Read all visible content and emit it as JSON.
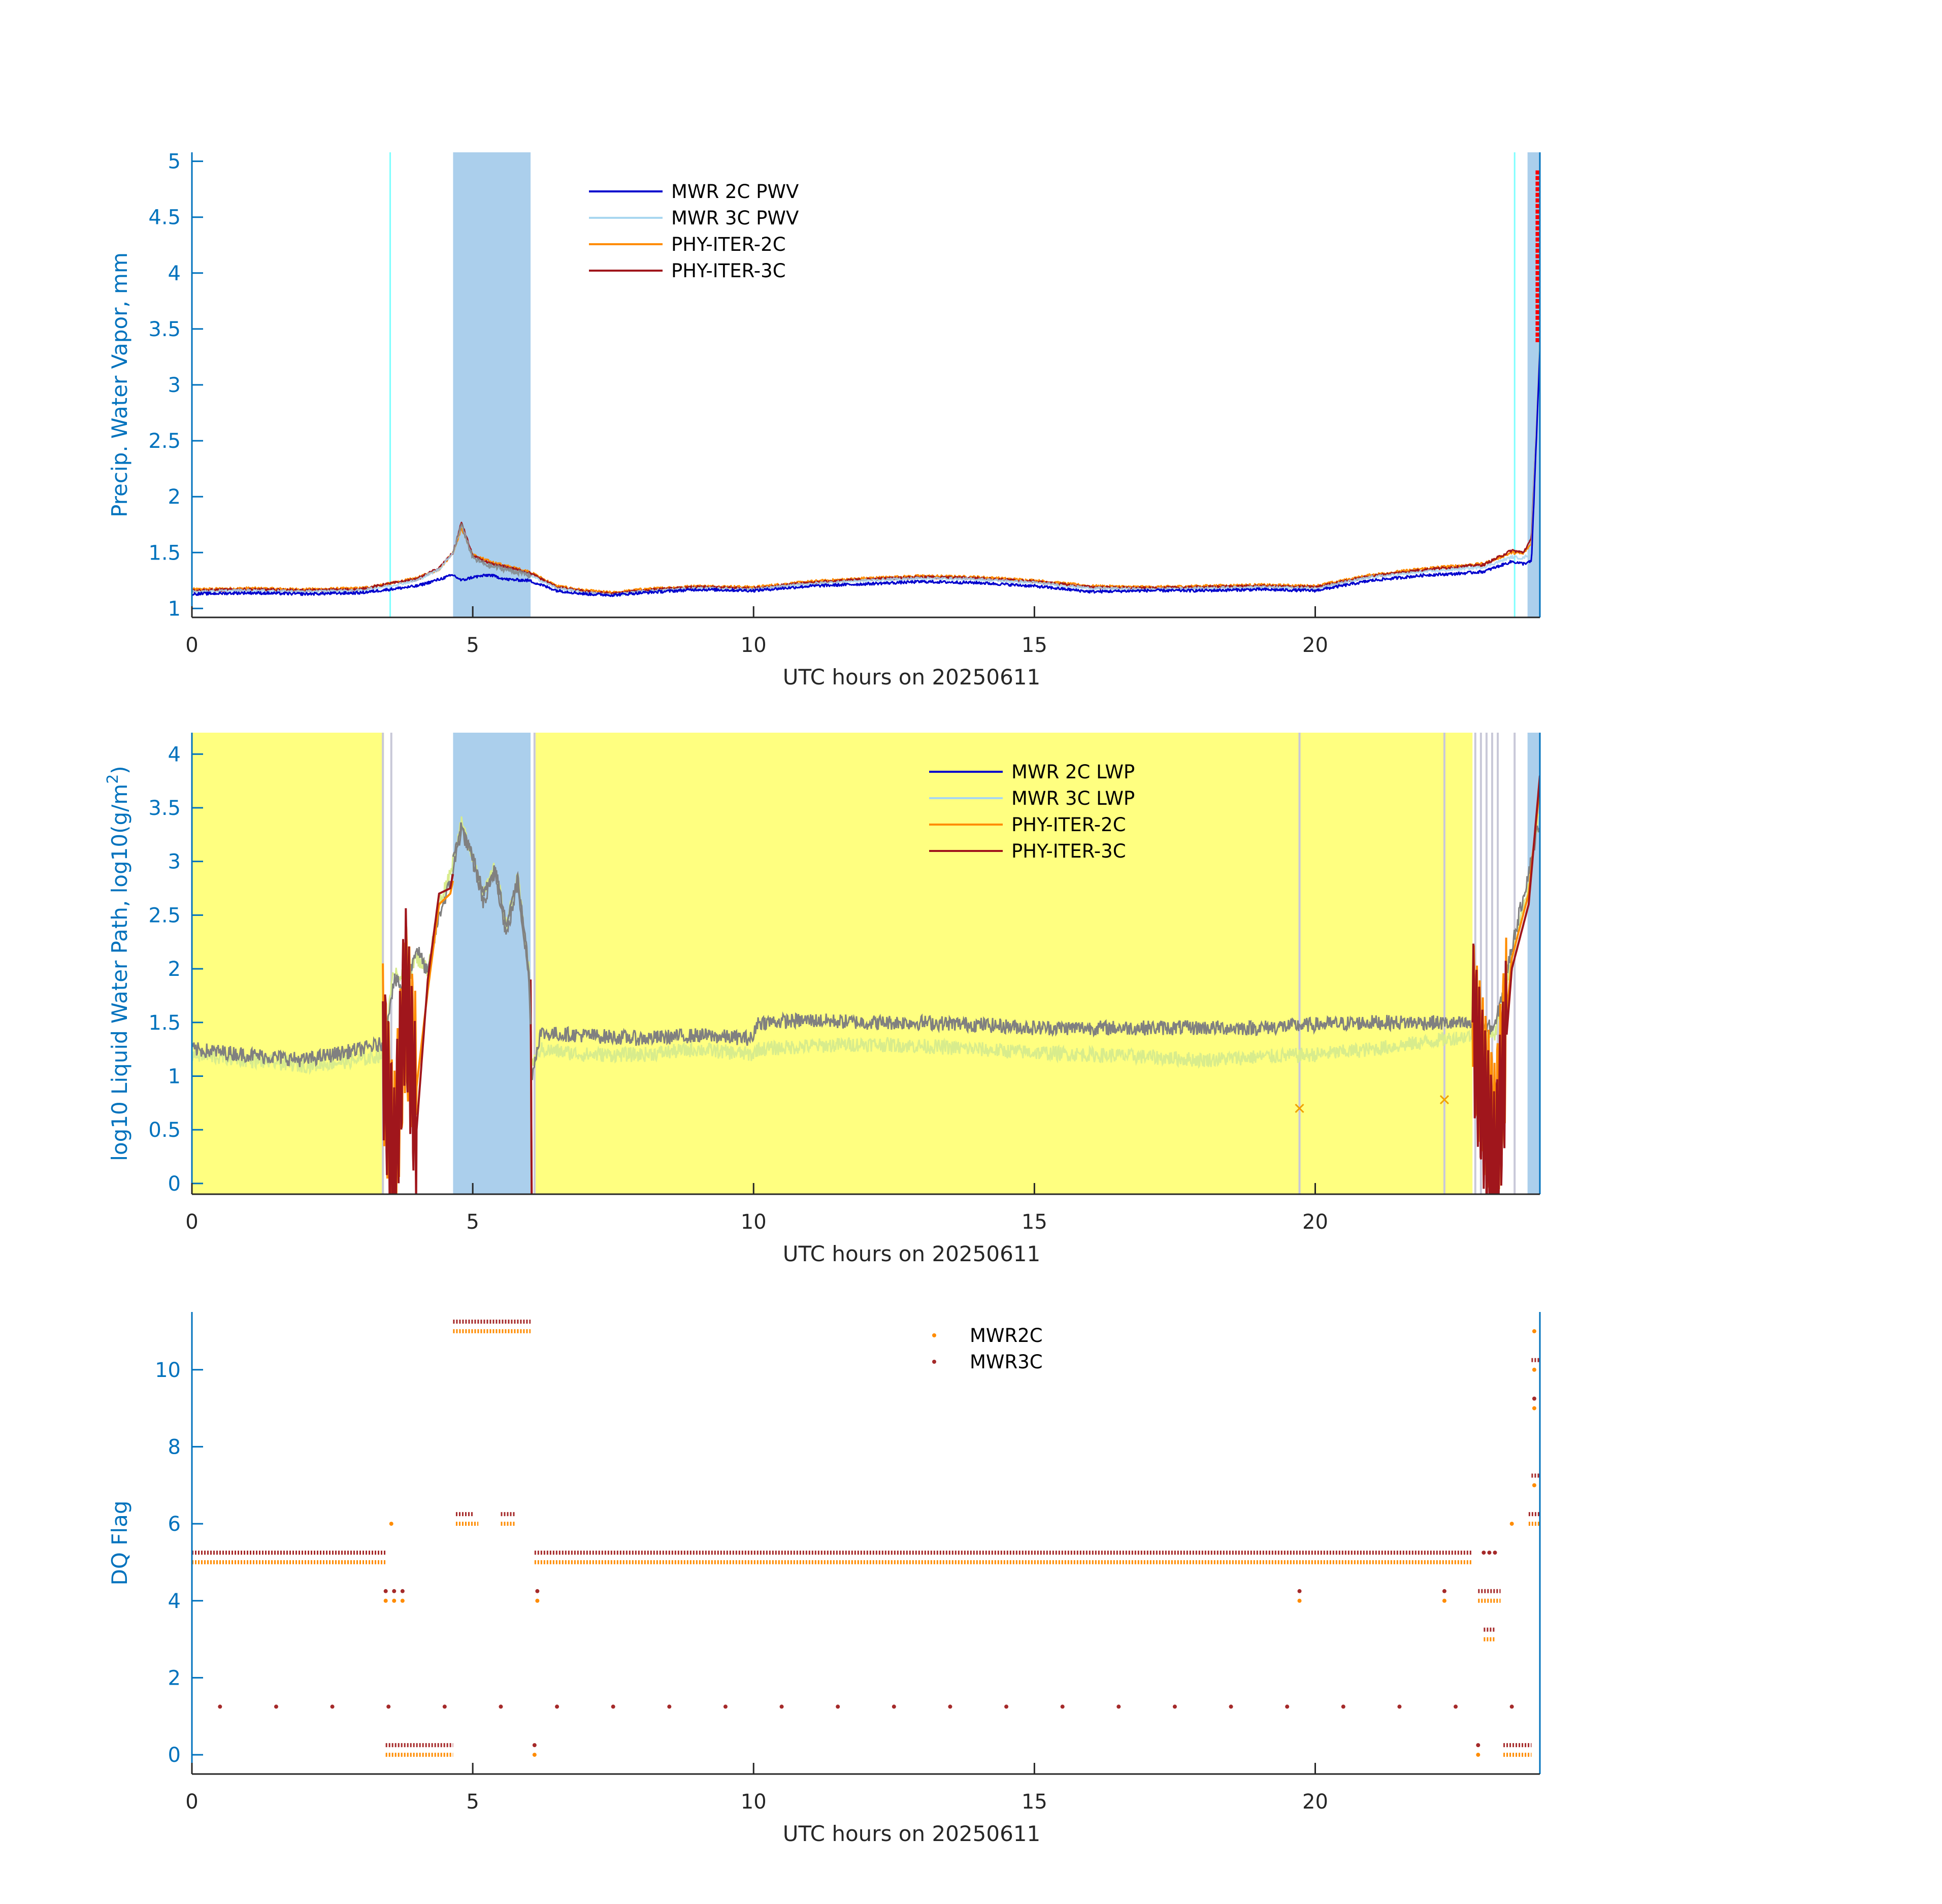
{
  "colors": {
    "axis_y": "#0072bd",
    "axis_x": "#262626",
    "mwr2c": "#0000cd",
    "mwr3c": "#a9d7f0",
    "phy2c": "#ff8c00",
    "phy3c": "#a0161c",
    "flag_2c": "#ff8c00",
    "flag_3c": "#a52a2a",
    "shade_blue": "#abcfec",
    "shade_yellow": "#ffff80",
    "cyan_line": "#7fffff",
    "grey_line": "#808080",
    "light_green": "#d8ec8c",
    "red_mark": "#ff0000"
  },
  "chart_data": [
    {
      "type": "line",
      "xlabel": "UTC hours on 20250611",
      "ylabel": "Precip. Water Vapor, mm",
      "xlim": [
        0,
        24
      ],
      "ylim": [
        0.92,
        5.08
      ],
      "xticks": [
        0,
        5,
        10,
        15,
        20
      ],
      "yticks": [
        1,
        1.5,
        2,
        2.5,
        3,
        3.5,
        4,
        4.5,
        5
      ],
      "ytick_labels": [
        "1",
        "1.5",
        "2",
        "2.5",
        "3",
        "3.5",
        "4",
        "4.5",
        "5"
      ],
      "legend_position": "top-center",
      "shaded_intervals_x": [
        [
          4.65,
          6.03
        ],
        [
          23.78,
          24.0
        ]
      ],
      "cyan_lines_x": [
        3.53,
        23.55
      ],
      "x": [
        0,
        1,
        2,
        3,
        3.5,
        4,
        4.4,
        4.65,
        4.8,
        5.0,
        5.3,
        5.6,
        6.0,
        6.5,
        7.0,
        7.5,
        8,
        9,
        10,
        11,
        12,
        13,
        14,
        15,
        16,
        17,
        18,
        19,
        20,
        21,
        22,
        22.5,
        23,
        23.5,
        23.7,
        23.85,
        24
      ],
      "series": [
        {
          "name": "MWR 2C PWV",
          "values": [
            1.13,
            1.14,
            1.13,
            1.14,
            1.17,
            1.2,
            1.26,
            1.3,
            1.25,
            1.28,
            1.3,
            1.26,
            1.25,
            1.16,
            1.13,
            1.12,
            1.14,
            1.17,
            1.16,
            1.2,
            1.22,
            1.24,
            1.23,
            1.2,
            1.15,
            1.16,
            1.16,
            1.17,
            1.16,
            1.25,
            1.3,
            1.31,
            1.33,
            1.42,
            1.4,
            1.42,
            3.3
          ]
        },
        {
          "name": "MWR 3C PWV",
          "values": [
            1.15,
            1.16,
            1.15,
            1.16,
            1.2,
            1.25,
            1.35,
            1.5,
            1.75,
            1.45,
            1.38,
            1.35,
            1.3,
            1.18,
            1.14,
            1.12,
            1.15,
            1.18,
            1.17,
            1.22,
            1.25,
            1.27,
            1.26,
            1.23,
            1.18,
            1.17,
            1.18,
            1.19,
            1.18,
            1.28,
            1.33,
            1.35,
            1.37,
            1.46,
            1.45,
            1.5,
            3.6
          ]
        },
        {
          "name": "PHY-ITER-2C",
          "values": [
            1.17,
            1.18,
            1.17,
            1.18,
            1.22,
            1.27,
            1.35,
            1.5,
            1.72,
            1.48,
            1.42,
            1.38,
            1.33,
            1.2,
            1.16,
            1.14,
            1.17,
            1.2,
            1.19,
            1.24,
            1.27,
            1.29,
            1.28,
            1.25,
            1.2,
            1.19,
            1.2,
            1.21,
            1.2,
            1.3,
            1.36,
            1.38,
            1.4,
            1.5,
            1.49,
            1.58,
            3.5
          ]
        },
        {
          "name": "PHY-ITER-3C",
          "values": [
            1.16,
            1.17,
            1.16,
            1.17,
            1.22,
            1.26,
            1.36,
            1.5,
            1.77,
            1.47,
            1.4,
            1.37,
            1.32,
            1.19,
            1.15,
            1.13,
            1.16,
            1.19,
            1.18,
            1.23,
            1.26,
            1.28,
            1.27,
            1.24,
            1.19,
            1.18,
            1.19,
            1.2,
            1.19,
            1.29,
            1.35,
            1.37,
            1.39,
            1.52,
            1.5,
            1.62,
            3.4
          ]
        }
      ],
      "red_marks_x": 23.95,
      "red_marks_y": [
        3.4,
        4.9
      ]
    },
    {
      "type": "line",
      "xlabel": "UTC hours on 20250611",
      "ylabel": "log10 Liquid Water Path, log10(g/m",
      "ylabel_sup": "2",
      "ylabel_end": ")",
      "xlim": [
        0,
        24
      ],
      "ylim": [
        -0.1,
        4.2
      ],
      "xticks": [
        0,
        5,
        10,
        15,
        20
      ],
      "yticks": [
        0,
        0.5,
        1,
        1.5,
        2,
        2.5,
        3,
        3.5,
        4
      ],
      "ytick_labels": [
        "0",
        "0.5",
        "1",
        "1.5",
        "2",
        "2.5",
        "3",
        "3.5",
        "4"
      ],
      "legend_position": "top-center",
      "yellow_intervals_x": [
        [
          0,
          3.42
        ],
        [
          6.12,
          22.8
        ]
      ],
      "shaded_intervals_x": [
        [
          4.65,
          6.03
        ],
        [
          23.78,
          24.0
        ]
      ],
      "thin_lines_x": [
        3.4,
        3.55,
        6.1,
        19.72,
        22.3,
        22.85,
        22.95,
        23.05,
        23.15,
        23.25,
        23.55
      ],
      "x": [
        0,
        1,
        2,
        3,
        3.4,
        3.6,
        3.8,
        4.0,
        4.2,
        4.4,
        4.6,
        4.8,
        5.0,
        5.2,
        5.4,
        5.6,
        5.8,
        6.0,
        6.05,
        6.2,
        7,
        8,
        9,
        10,
        10.05,
        11,
        12,
        13,
        14,
        15,
        16,
        17,
        18,
        19,
        20,
        21,
        22,
        22.8,
        23.2,
        23.5,
        23.8,
        24
      ],
      "series": [
        {
          "name": "MWR 2C LWP",
          "values": [
            1.25,
            1.2,
            1.15,
            1.25,
            1.3,
            1.9,
            1.8,
            2.2,
            1.95,
            2.5,
            2.8,
            3.3,
            3.0,
            2.6,
            2.9,
            2.3,
            2.8,
            1.9,
            1.0,
            1.4,
            1.38,
            1.35,
            1.38,
            1.35,
            1.5,
            1.52,
            1.5,
            1.5,
            1.48,
            1.45,
            1.45,
            1.45,
            1.45,
            1.45,
            1.48,
            1.5,
            1.5,
            1.48,
            1.45,
            2.2,
            2.9,
            3.4
          ]
        },
        {
          "name": "MWR 3C LWP",
          "values": [
            1.2,
            1.15,
            1.1,
            1.15,
            1.2,
            2.0,
            1.9,
            2.1,
            2.0,
            2.6,
            2.9,
            3.35,
            3.05,
            2.7,
            2.95,
            2.4,
            2.85,
            2.0,
            1.1,
            1.25,
            1.2,
            1.2,
            1.25,
            1.2,
            1.25,
            1.28,
            1.3,
            1.28,
            1.25,
            1.22,
            1.2,
            1.18,
            1.15,
            1.18,
            1.2,
            1.25,
            1.32,
            1.38,
            1.4,
            2.1,
            2.8,
            3.5
          ]
        },
        {
          "name": "PHY-ITER-2C",
          "values": [
            1.22,
            1.18,
            1.12,
            1.2,
            1.25,
            0.2,
            1.7,
            0.9,
            1.8,
            2.6,
            2.7,
            3.2,
            2.9,
            2.55,
            2.85,
            2.3,
            2.75,
            1.85,
            0.0,
            1.45,
            1.4,
            1.38,
            1.4,
            1.38,
            1.52,
            1.53,
            1.52,
            1.51,
            1.5,
            1.47,
            1.47,
            1.47,
            1.47,
            1.47,
            1.5,
            1.52,
            1.52,
            1.5,
            0.3,
            2.1,
            2.7,
            3.7
          ]
        },
        {
          "name": "PHY-ITER-3C",
          "values": [
            1.24,
            1.19,
            1.13,
            1.22,
            1.28,
            0.1,
            1.85,
            0.5,
            1.9,
            2.7,
            2.75,
            3.3,
            2.95,
            2.6,
            2.9,
            2.35,
            2.8,
            1.9,
            0.0,
            1.45,
            1.4,
            1.38,
            1.4,
            1.38,
            1.52,
            1.53,
            1.52,
            1.51,
            1.5,
            1.47,
            1.47,
            1.47,
            1.47,
            1.47,
            1.5,
            1.52,
            1.52,
            1.5,
            0.0,
            2.0,
            2.6,
            3.8
          ]
        }
      ],
      "x_markers": [
        [
          19.72,
          0.7
        ],
        [
          22.3,
          0.78
        ]
      ]
    },
    {
      "type": "scatter",
      "xlabel": "UTC hours on 20250611",
      "ylabel": "DQ Flag",
      "xlim": [
        0,
        24
      ],
      "ylim": [
        -0.5,
        11.5
      ],
      "xticks": [
        0,
        5,
        10,
        15,
        20
      ],
      "yticks": [
        0,
        2,
        4,
        6,
        8,
        10
      ],
      "ytick_labels": [
        "0",
        "2",
        "4",
        "6",
        "8",
        "10"
      ],
      "legend_position": "top-center",
      "series": [
        {
          "name": "MWR2C",
          "runs": [
            [
              0,
              3.45,
              5
            ],
            [
              6.1,
              22.8,
              5
            ],
            [
              4.65,
              6.03,
              11
            ],
            [
              3.45,
              4.65,
              0
            ],
            [
              23.35,
              23.85,
              0
            ],
            [
              4.7,
              5.1,
              6
            ],
            [
              5.5,
              5.75,
              6
            ],
            [
              23.8,
              24,
              6
            ],
            [
              22.9,
              23.3,
              4
            ],
            [
              23.0,
              23.2,
              3
            ]
          ],
          "points": [
            [
              3.45,
              4
            ],
            [
              3.6,
              4
            ],
            [
              3.75,
              4
            ],
            [
              3.55,
              6
            ],
            [
              6.1,
              0
            ],
            [
              6.15,
              4
            ],
            [
              19.72,
              4
            ],
            [
              22.3,
              4
            ],
            [
              23.5,
              6
            ],
            [
              23.9,
              9
            ],
            [
              23.9,
              10
            ],
            [
              23.9,
              11
            ],
            [
              23.9,
              7
            ],
            [
              22.9,
              0
            ]
          ]
        },
        {
          "name": "MWR3C",
          "runs": [
            [
              0,
              3.45,
              5.25
            ],
            [
              6.1,
              22.8,
              5.25
            ],
            [
              4.65,
              6.03,
              11.25
            ],
            [
              3.45,
              4.65,
              0.25
            ],
            [
              23.35,
              23.85,
              0.25
            ],
            [
              4.7,
              5.0,
              6.25
            ],
            [
              5.5,
              5.75,
              6.25
            ],
            [
              23.8,
              24,
              6.25
            ],
            [
              22.9,
              23.3,
              4.25
            ],
            [
              23.0,
              23.2,
              3.25
            ],
            [
              23.85,
              24,
              10.25
            ],
            [
              23.85,
              24,
              7.25
            ]
          ],
          "points": [
            [
              0.5,
              1.25
            ],
            [
              1.5,
              1.25
            ],
            [
              2.5,
              1.25
            ],
            [
              3.5,
              1.25
            ],
            [
              4.5,
              1.25
            ],
            [
              5.5,
              1.25
            ],
            [
              6.5,
              1.25
            ],
            [
              7.5,
              1.25
            ],
            [
              8.5,
              1.25
            ],
            [
              9.5,
              1.25
            ],
            [
              10.5,
              1.25
            ],
            [
              11.5,
              1.25
            ],
            [
              12.5,
              1.25
            ],
            [
              13.5,
              1.25
            ],
            [
              14.5,
              1.25
            ],
            [
              15.5,
              1.25
            ],
            [
              16.5,
              1.25
            ],
            [
              17.5,
              1.25
            ],
            [
              18.5,
              1.25
            ],
            [
              19.5,
              1.25
            ],
            [
              20.5,
              1.25
            ],
            [
              21.5,
              1.25
            ],
            [
              22.5,
              1.25
            ],
            [
              23.5,
              1.25
            ],
            [
              3.45,
              4.25
            ],
            [
              3.6,
              4.25
            ],
            [
              3.75,
              4.25
            ],
            [
              6.1,
              0.25
            ],
            [
              6.15,
              4.25
            ],
            [
              19.72,
              4.25
            ],
            [
              22.3,
              4.25
            ],
            [
              22.9,
              0.25
            ],
            [
              23.0,
              5.25
            ],
            [
              23.1,
              5.25
            ],
            [
              23.2,
              5.25
            ],
            [
              23.9,
              9.25
            ]
          ]
        }
      ]
    }
  ]
}
